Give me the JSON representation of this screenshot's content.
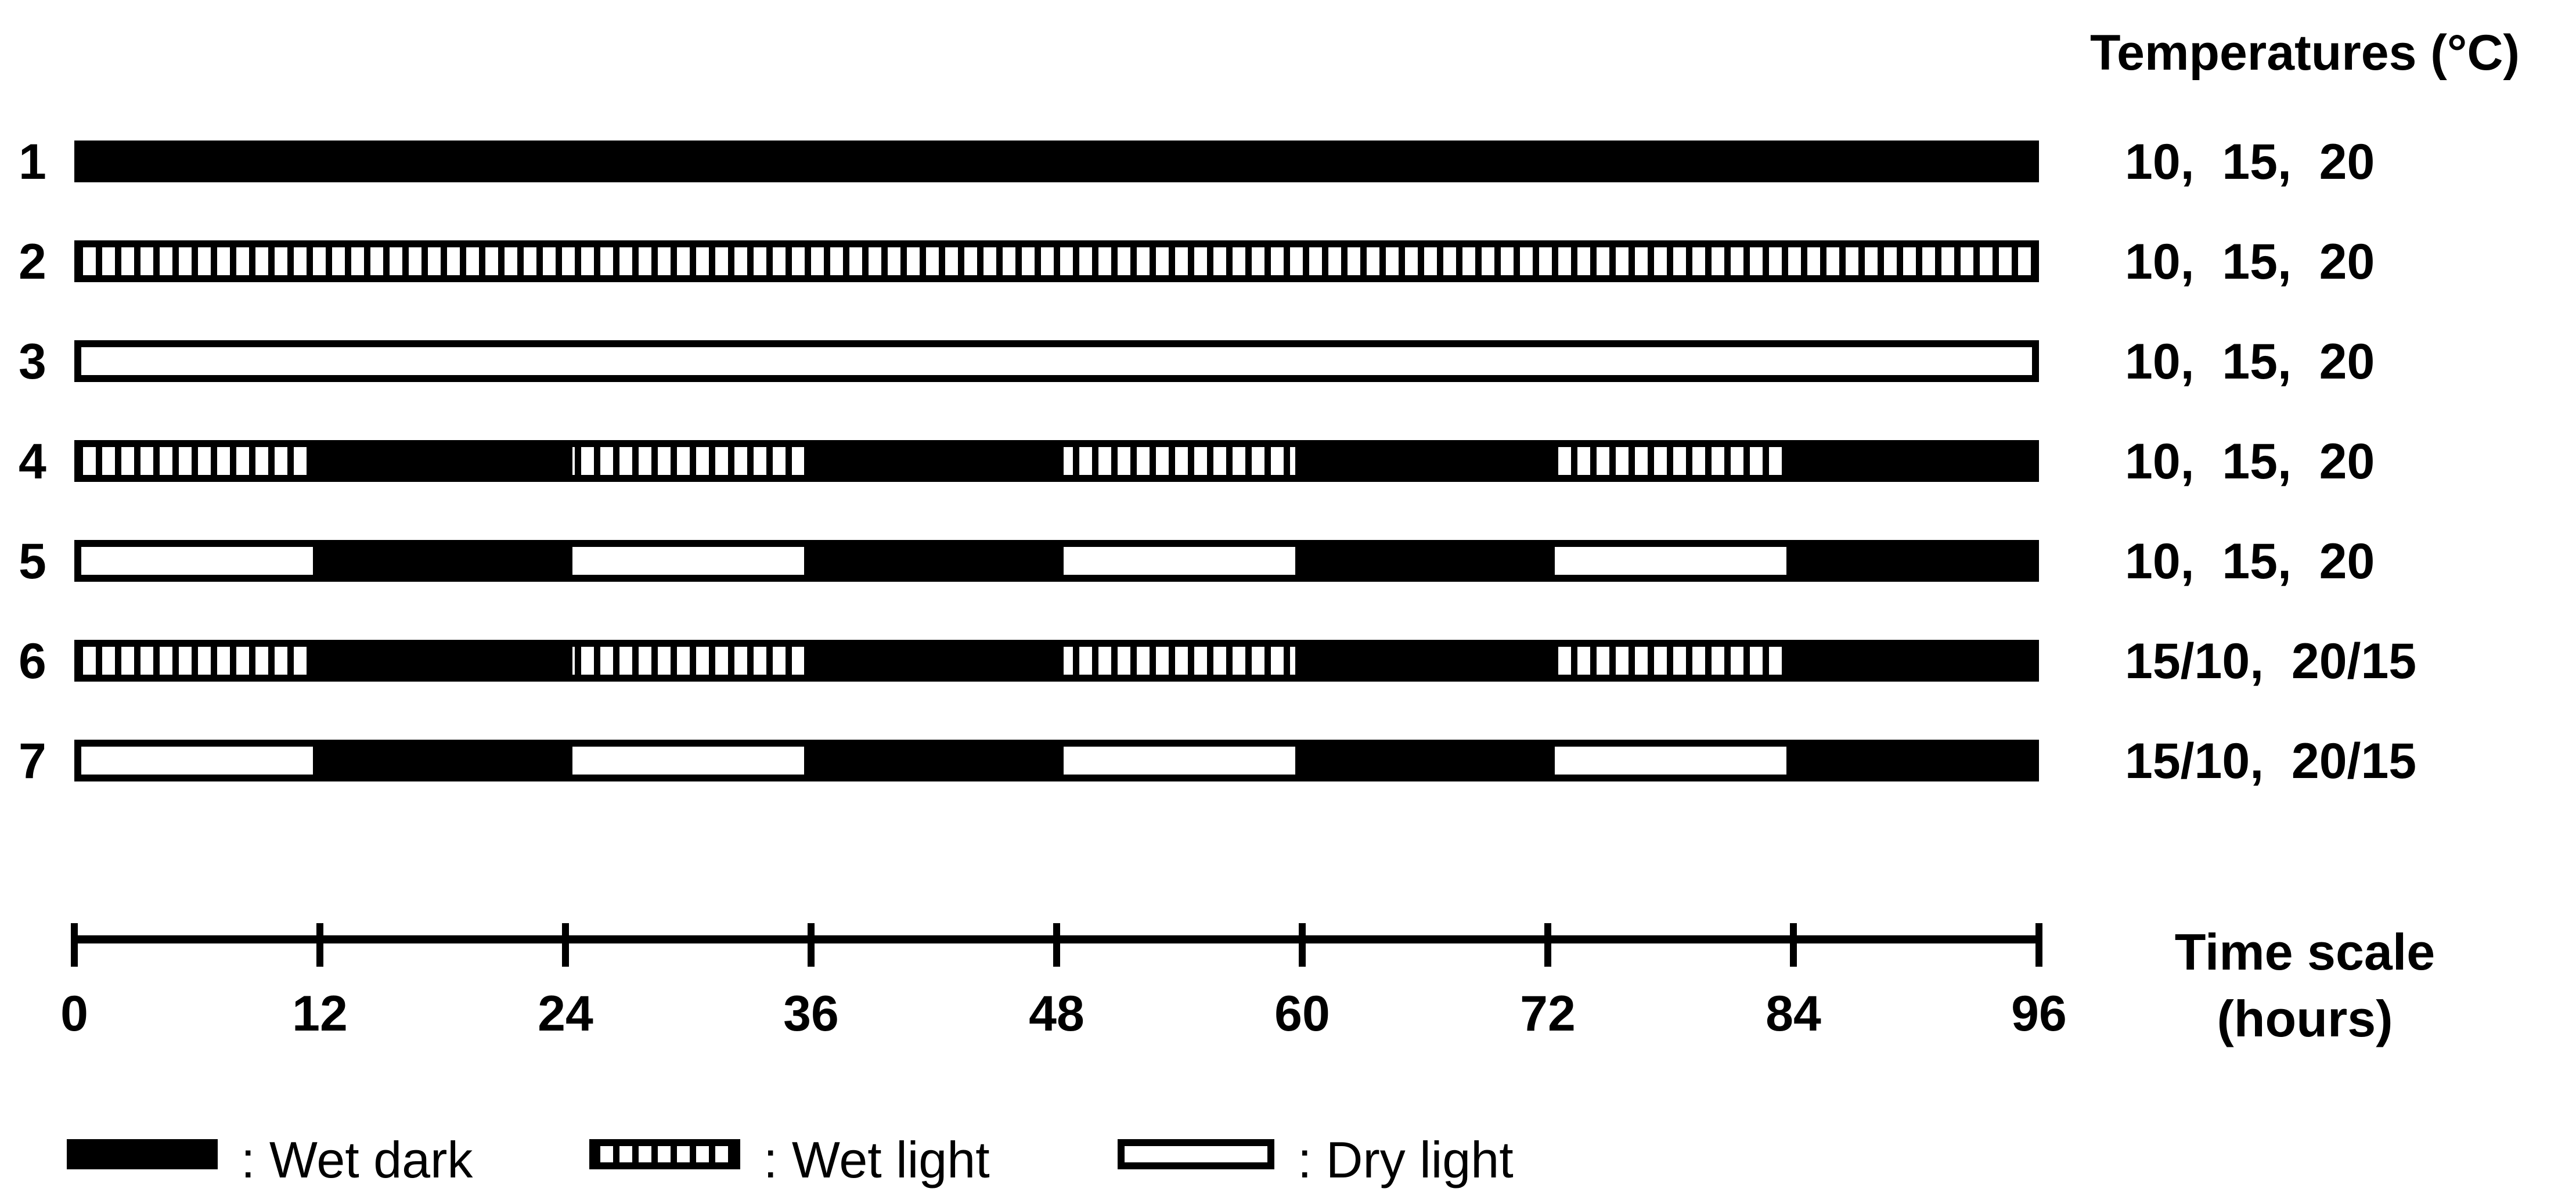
{
  "temperatures_header": "Temperatures (°C)",
  "time_axis": {
    "label_line1": "Time scale",
    "label_line2": "(hours)",
    "min": 0,
    "max": 96,
    "ticks": [
      0,
      12,
      24,
      36,
      48,
      60,
      72,
      84,
      96
    ],
    "tick_labels": [
      "0",
      "12",
      "24",
      "36",
      "48",
      "60",
      "72",
      "84",
      "96"
    ]
  },
  "rows": [
    {
      "label": "1",
      "temps": "10,  15,  20",
      "segments": [
        {
          "start": 0,
          "end": 96,
          "type": "wet_dark"
        }
      ]
    },
    {
      "label": "2",
      "temps": "10,  15,  20",
      "segments": [
        {
          "start": 0,
          "end": 96,
          "type": "wet_light"
        }
      ]
    },
    {
      "label": "3",
      "temps": "10,  15,  20",
      "segments": [
        {
          "start": 0,
          "end": 96,
          "type": "dry_light"
        }
      ]
    },
    {
      "label": "4",
      "temps": "10,  15,  20",
      "segments": [
        {
          "start": 0,
          "end": 12,
          "type": "wet_light"
        },
        {
          "start": 12,
          "end": 24,
          "type": "wet_dark"
        },
        {
          "start": 24,
          "end": 36,
          "type": "wet_light"
        },
        {
          "start": 36,
          "end": 48,
          "type": "wet_dark"
        },
        {
          "start": 48,
          "end": 60,
          "type": "wet_light"
        },
        {
          "start": 60,
          "end": 72,
          "type": "wet_dark"
        },
        {
          "start": 72,
          "end": 84,
          "type": "wet_light"
        },
        {
          "start": 84,
          "end": 96,
          "type": "wet_dark"
        }
      ]
    },
    {
      "label": "5",
      "temps": "10,  15,  20",
      "segments": [
        {
          "start": 0,
          "end": 12,
          "type": "dry_light"
        },
        {
          "start": 12,
          "end": 24,
          "type": "wet_dark"
        },
        {
          "start": 24,
          "end": 36,
          "type": "dry_light"
        },
        {
          "start": 36,
          "end": 48,
          "type": "wet_dark"
        },
        {
          "start": 48,
          "end": 60,
          "type": "dry_light"
        },
        {
          "start": 60,
          "end": 72,
          "type": "wet_dark"
        },
        {
          "start": 72,
          "end": 84,
          "type": "dry_light"
        },
        {
          "start": 84,
          "end": 96,
          "type": "wet_dark"
        }
      ]
    },
    {
      "label": "6",
      "temps": "15/10,  20/15",
      "segments": [
        {
          "start": 0,
          "end": 12,
          "type": "wet_light"
        },
        {
          "start": 12,
          "end": 24,
          "type": "wet_dark"
        },
        {
          "start": 24,
          "end": 36,
          "type": "wet_light"
        },
        {
          "start": 36,
          "end": 48,
          "type": "wet_dark"
        },
        {
          "start": 48,
          "end": 60,
          "type": "wet_light"
        },
        {
          "start": 60,
          "end": 72,
          "type": "wet_dark"
        },
        {
          "start": 72,
          "end": 84,
          "type": "wet_light"
        },
        {
          "start": 84,
          "end": 96,
          "type": "wet_dark"
        }
      ]
    },
    {
      "label": "7",
      "temps": "15/10,  20/15",
      "segments": [
        {
          "start": 0,
          "end": 12,
          "type": "dry_light"
        },
        {
          "start": 12,
          "end": 24,
          "type": "wet_dark"
        },
        {
          "start": 24,
          "end": 36,
          "type": "dry_light"
        },
        {
          "start": 36,
          "end": 48,
          "type": "wet_dark"
        },
        {
          "start": 48,
          "end": 60,
          "type": "dry_light"
        },
        {
          "start": 60,
          "end": 72,
          "type": "wet_dark"
        },
        {
          "start": 72,
          "end": 84,
          "type": "dry_light"
        },
        {
          "start": 84,
          "end": 96,
          "type": "wet_dark"
        }
      ]
    }
  ],
  "legend": [
    {
      "type": "wet_dark",
      "label": ": Wet dark"
    },
    {
      "type": "wet_light",
      "label": ": Wet light"
    },
    {
      "type": "dry_light",
      "label": ": Dry light"
    }
  ],
  "colors": {
    "ink": "#000000",
    "paper": "#ffffff"
  }
}
